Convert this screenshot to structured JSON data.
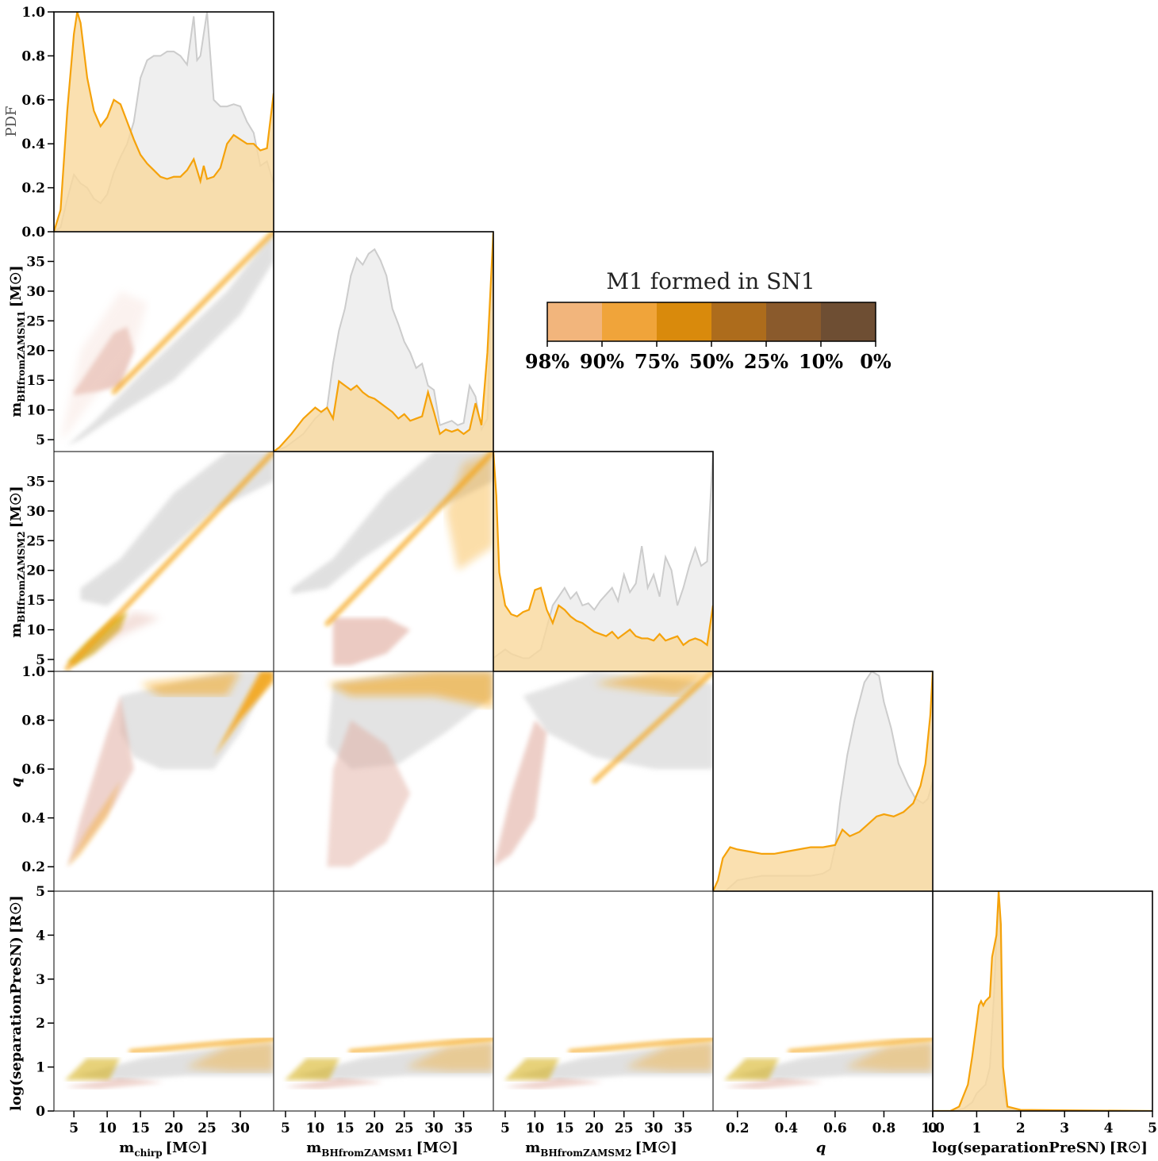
{
  "colors": {
    "grey_line": "#cccccc",
    "grey_fill": "#efefef",
    "orange_line": "#f5a20a",
    "orange_fill": "#f9d89c",
    "scatter_grey": "#c8c8c8",
    "scatter_orange": "#f5a20a",
    "scatter_pink": "#dfa79a",
    "scatter_gold": "#d4ad10"
  },
  "colorbar": {
    "title": "M1 formed in SN1",
    "swatches": [
      "#f2b57c",
      "#f0a43a",
      "#d98a0c",
      "#ad6c1c",
      "#8a5a2c",
      "#6e4e33"
    ],
    "ticks": [
      "98%",
      "90%",
      "75%",
      "50%",
      "25%",
      "10%",
      "0%"
    ]
  },
  "labels": {
    "pdf": "PDF",
    "mchirp": "m",
    "mchirp_sub": "chirp",
    "mbh1": "m",
    "mbh1_sub": "BHfromZAMSM1",
    "mbh2": "m",
    "mbh2_sub": "BHfromZAMSM2",
    "unit_msun": "[M☉]",
    "q": "q",
    "logsep": "log(separationPreSN)",
    "unit_rsun": "[R☉]"
  },
  "chart_data": {
    "type": "scatter",
    "layout": "corner",
    "variables": [
      {
        "key": "mchirp",
        "range": [
          2,
          35
        ],
        "ticks": [
          5,
          10,
          15,
          20,
          25,
          30
        ]
      },
      {
        "key": "mbh1",
        "range": [
          3,
          40
        ],
        "ticks": [
          5,
          10,
          15,
          20,
          25,
          30,
          35
        ]
      },
      {
        "key": "mbh2",
        "range": [
          3,
          40
        ],
        "ticks": [
          5,
          10,
          15,
          20,
          25,
          30,
          35
        ]
      },
      {
        "key": "q",
        "range": [
          0.1,
          1.0
        ],
        "ticks": [
          0.2,
          0.4,
          0.6,
          0.8,
          1.0
        ]
      },
      {
        "key": "logsep",
        "range": [
          0,
          5
        ],
        "ticks": [
          0,
          1,
          2,
          3,
          4,
          5
        ]
      }
    ],
    "pdf_axis": {
      "ylim": [
        0,
        1
      ],
      "ticks": [
        0.0,
        0.2,
        0.4,
        0.6,
        0.8,
        1.0
      ]
    },
    "diagonal": [
      {
        "grey": [
          [
            2,
            0
          ],
          [
            3,
            0.02
          ],
          [
            4,
            0.15
          ],
          [
            5,
            0.26
          ],
          [
            6,
            0.22
          ],
          [
            7,
            0.2
          ],
          [
            8,
            0.15
          ],
          [
            9,
            0.13
          ],
          [
            10,
            0.17
          ],
          [
            11,
            0.27
          ],
          [
            12,
            0.34
          ],
          [
            13,
            0.4
          ],
          [
            14,
            0.5
          ],
          [
            15,
            0.7
          ],
          [
            16,
            0.78
          ],
          [
            17,
            0.8
          ],
          [
            18,
            0.8
          ],
          [
            19,
            0.82
          ],
          [
            20,
            0.82
          ],
          [
            21,
            0.8
          ],
          [
            22,
            0.76
          ],
          [
            23,
            0.98
          ],
          [
            23.5,
            0.78
          ],
          [
            24,
            0.8
          ],
          [
            25,
            1.0
          ],
          [
            26,
            0.6
          ],
          [
            27,
            0.57
          ],
          [
            28,
            0.57
          ],
          [
            29,
            0.58
          ],
          [
            30,
            0.57
          ],
          [
            31,
            0.5
          ],
          [
            32,
            0.45
          ],
          [
            33,
            0.3
          ],
          [
            34,
            0.32
          ],
          [
            35,
            0.22
          ]
        ],
        "orange": [
          [
            2,
            0
          ],
          [
            3,
            0.1
          ],
          [
            4,
            0.55
          ],
          [
            5,
            0.9
          ],
          [
            5.5,
            1.0
          ],
          [
            6,
            0.95
          ],
          [
            7,
            0.7
          ],
          [
            8,
            0.55
          ],
          [
            9,
            0.48
          ],
          [
            10,
            0.52
          ],
          [
            11,
            0.6
          ],
          [
            12,
            0.58
          ],
          [
            13,
            0.5
          ],
          [
            14,
            0.42
          ],
          [
            15,
            0.35
          ],
          [
            16,
            0.31
          ],
          [
            17,
            0.28
          ],
          [
            18,
            0.25
          ],
          [
            19,
            0.24
          ],
          [
            20,
            0.25
          ],
          [
            21,
            0.25
          ],
          [
            22,
            0.28
          ],
          [
            23,
            0.33
          ],
          [
            24,
            0.23
          ],
          [
            24.5,
            0.3
          ],
          [
            25,
            0.24
          ],
          [
            26,
            0.25
          ],
          [
            27,
            0.29
          ],
          [
            28,
            0.4
          ],
          [
            29,
            0.44
          ],
          [
            30,
            0.42
          ],
          [
            31,
            0.4
          ],
          [
            32,
            0.4
          ],
          [
            33,
            0.37
          ],
          [
            34,
            0.38
          ],
          [
            35,
            0.63
          ]
        ]
      },
      {
        "grey": [
          [
            3,
            0
          ],
          [
            5,
            0.02
          ],
          [
            8,
            0.08
          ],
          [
            10,
            0.15
          ],
          [
            12,
            0.2
          ],
          [
            13,
            0.4
          ],
          [
            14,
            0.55
          ],
          [
            15,
            0.65
          ],
          [
            16,
            0.8
          ],
          [
            17,
            0.88
          ],
          [
            18,
            0.85
          ],
          [
            19,
            0.9
          ],
          [
            20,
            0.92
          ],
          [
            21,
            0.87
          ],
          [
            22,
            0.8
          ],
          [
            23,
            0.65
          ],
          [
            24,
            0.58
          ],
          [
            25,
            0.5
          ],
          [
            26,
            0.45
          ],
          [
            27,
            0.38
          ],
          [
            28,
            0.4
          ],
          [
            29,
            0.3
          ],
          [
            30,
            0.28
          ],
          [
            31,
            0.12
          ],
          [
            32,
            0.13
          ],
          [
            33,
            0.14
          ],
          [
            34,
            0.12
          ],
          [
            35,
            0.13
          ],
          [
            36,
            0.3
          ],
          [
            37,
            0.25
          ],
          [
            38,
            0.1
          ],
          [
            39,
            0.15
          ],
          [
            40,
            1.0
          ]
        ],
        "orange": [
          [
            3,
            0
          ],
          [
            4,
            0.02
          ],
          [
            5,
            0.05
          ],
          [
            6,
            0.08
          ],
          [
            8,
            0.15
          ],
          [
            10,
            0.2
          ],
          [
            11,
            0.18
          ],
          [
            12,
            0.2
          ],
          [
            13,
            0.15
          ],
          [
            14,
            0.32
          ],
          [
            15,
            0.3
          ],
          [
            16,
            0.28
          ],
          [
            17,
            0.3
          ],
          [
            18,
            0.27
          ],
          [
            19,
            0.25
          ],
          [
            20,
            0.24
          ],
          [
            21,
            0.22
          ],
          [
            22,
            0.2
          ],
          [
            23,
            0.18
          ],
          [
            24,
            0.15
          ],
          [
            25,
            0.17
          ],
          [
            26,
            0.14
          ],
          [
            27,
            0.15
          ],
          [
            28,
            0.16
          ],
          [
            29,
            0.27
          ],
          [
            30,
            0.18
          ],
          [
            31,
            0.08
          ],
          [
            32,
            0.1
          ],
          [
            33,
            0.09
          ],
          [
            34,
            0.1
          ],
          [
            35,
            0.08
          ],
          [
            36,
            0.1
          ],
          [
            37,
            0.22
          ],
          [
            38,
            0.12
          ],
          [
            39,
            0.45
          ],
          [
            40,
            1.0
          ]
        ]
      },
      {
        "grey": [
          [
            3,
            0.06
          ],
          [
            4,
            0.08
          ],
          [
            5,
            0.1
          ],
          [
            6,
            0.08
          ],
          [
            7,
            0.07
          ],
          [
            8,
            0.06
          ],
          [
            9,
            0.06
          ],
          [
            10,
            0.08
          ],
          [
            11,
            0.1
          ],
          [
            12,
            0.2
          ],
          [
            13,
            0.3
          ],
          [
            14,
            0.34
          ],
          [
            15,
            0.38
          ],
          [
            16,
            0.33
          ],
          [
            17,
            0.36
          ],
          [
            18,
            0.3
          ],
          [
            19,
            0.31
          ],
          [
            20,
            0.28
          ],
          [
            21,
            0.32
          ],
          [
            22,
            0.35
          ],
          [
            23,
            0.38
          ],
          [
            24,
            0.32
          ],
          [
            25,
            0.44
          ],
          [
            26,
            0.36
          ],
          [
            27,
            0.4
          ],
          [
            28,
            0.57
          ],
          [
            29,
            0.38
          ],
          [
            30,
            0.44
          ],
          [
            31,
            0.34
          ],
          [
            32,
            0.52
          ],
          [
            33,
            0.46
          ],
          [
            34,
            0.3
          ],
          [
            35,
            0.38
          ],
          [
            36,
            0.48
          ],
          [
            37,
            0.56
          ],
          [
            38,
            0.48
          ],
          [
            39,
            0.5
          ],
          [
            40,
            1.0
          ]
        ],
        "orange": [
          [
            3,
            1.0
          ],
          [
            3.5,
            0.8
          ],
          [
            4,
            0.45
          ],
          [
            5,
            0.3
          ],
          [
            6,
            0.26
          ],
          [
            7,
            0.25
          ],
          [
            8,
            0.27
          ],
          [
            9,
            0.28
          ],
          [
            10,
            0.37
          ],
          [
            11,
            0.38
          ],
          [
            12,
            0.28
          ],
          [
            13,
            0.22
          ],
          [
            14,
            0.3
          ],
          [
            15,
            0.28
          ],
          [
            16,
            0.25
          ],
          [
            17,
            0.23
          ],
          [
            18,
            0.22
          ],
          [
            19,
            0.2
          ],
          [
            20,
            0.18
          ],
          [
            21,
            0.17
          ],
          [
            22,
            0.16
          ],
          [
            23,
            0.18
          ],
          [
            24,
            0.15
          ],
          [
            25,
            0.17
          ],
          [
            26,
            0.19
          ],
          [
            27,
            0.16
          ],
          [
            28,
            0.15
          ],
          [
            29,
            0.15
          ],
          [
            30,
            0.14
          ],
          [
            31,
            0.17
          ],
          [
            32,
            0.14
          ],
          [
            33,
            0.15
          ],
          [
            34,
            0.16
          ],
          [
            35,
            0.12
          ],
          [
            36,
            0.14
          ],
          [
            37,
            0.15
          ],
          [
            38,
            0.14
          ],
          [
            39,
            0.12
          ],
          [
            40,
            0.3
          ]
        ]
      },
      {
        "grey": [
          [
            0.1,
            0
          ],
          [
            0.15,
            0
          ],
          [
            0.2,
            0.05
          ],
          [
            0.3,
            0.07
          ],
          [
            0.4,
            0.07
          ],
          [
            0.5,
            0.07
          ],
          [
            0.55,
            0.08
          ],
          [
            0.58,
            0.1
          ],
          [
            0.6,
            0.2
          ],
          [
            0.62,
            0.4
          ],
          [
            0.65,
            0.62
          ],
          [
            0.68,
            0.78
          ],
          [
            0.72,
            0.95
          ],
          [
            0.75,
            1.0
          ],
          [
            0.78,
            0.98
          ],
          [
            0.8,
            0.86
          ],
          [
            0.83,
            0.74
          ],
          [
            0.86,
            0.58
          ],
          [
            0.9,
            0.48
          ],
          [
            0.93,
            0.42
          ],
          [
            0.96,
            0.4
          ],
          [
            0.98,
            0.42
          ],
          [
            1.0,
            0.5
          ]
        ],
        "orange": [
          [
            0.1,
            0
          ],
          [
            0.12,
            0.05
          ],
          [
            0.14,
            0.15
          ],
          [
            0.17,
            0.2
          ],
          [
            0.2,
            0.19
          ],
          [
            0.25,
            0.18
          ],
          [
            0.3,
            0.17
          ],
          [
            0.35,
            0.17
          ],
          [
            0.4,
            0.18
          ],
          [
            0.45,
            0.19
          ],
          [
            0.5,
            0.2
          ],
          [
            0.55,
            0.2
          ],
          [
            0.6,
            0.21
          ],
          [
            0.63,
            0.28
          ],
          [
            0.66,
            0.25
          ],
          [
            0.7,
            0.27
          ],
          [
            0.73,
            0.3
          ],
          [
            0.77,
            0.34
          ],
          [
            0.8,
            0.35
          ],
          [
            0.84,
            0.34
          ],
          [
            0.88,
            0.36
          ],
          [
            0.92,
            0.4
          ],
          [
            0.95,
            0.48
          ],
          [
            0.97,
            0.58
          ],
          [
            0.99,
            0.8
          ],
          [
            1.0,
            1.0
          ]
        ]
      },
      {
        "grey": [
          [
            0,
            0
          ],
          [
            0.4,
            0
          ],
          [
            0.7,
            0.01
          ],
          [
            0.9,
            0.04
          ],
          [
            1.0,
            0.08
          ],
          [
            1.1,
            0.1
          ],
          [
            1.2,
            0.12
          ],
          [
            1.3,
            0.2
          ],
          [
            1.4,
            0.55
          ],
          [
            1.45,
            0.8
          ],
          [
            1.5,
            0.97
          ],
          [
            1.55,
            0.7
          ],
          [
            1.6,
            0.1
          ],
          [
            1.7,
            0.01
          ],
          [
            2.0,
            0
          ],
          [
            5,
            0
          ]
        ],
        "orange": [
          [
            0,
            0
          ],
          [
            0.4,
            0
          ],
          [
            0.6,
            0.02
          ],
          [
            0.8,
            0.12
          ],
          [
            0.9,
            0.25
          ],
          [
            1.0,
            0.4
          ],
          [
            1.05,
            0.48
          ],
          [
            1.1,
            0.5
          ],
          [
            1.15,
            0.48
          ],
          [
            1.2,
            0.5
          ],
          [
            1.3,
            0.52
          ],
          [
            1.35,
            0.7
          ],
          [
            1.45,
            0.8
          ],
          [
            1.5,
            1.0
          ],
          [
            1.55,
            0.85
          ],
          [
            1.6,
            0.2
          ],
          [
            1.7,
            0.02
          ],
          [
            2.0,
            0.005
          ],
          [
            5,
            0
          ]
        ]
      }
    ]
  }
}
